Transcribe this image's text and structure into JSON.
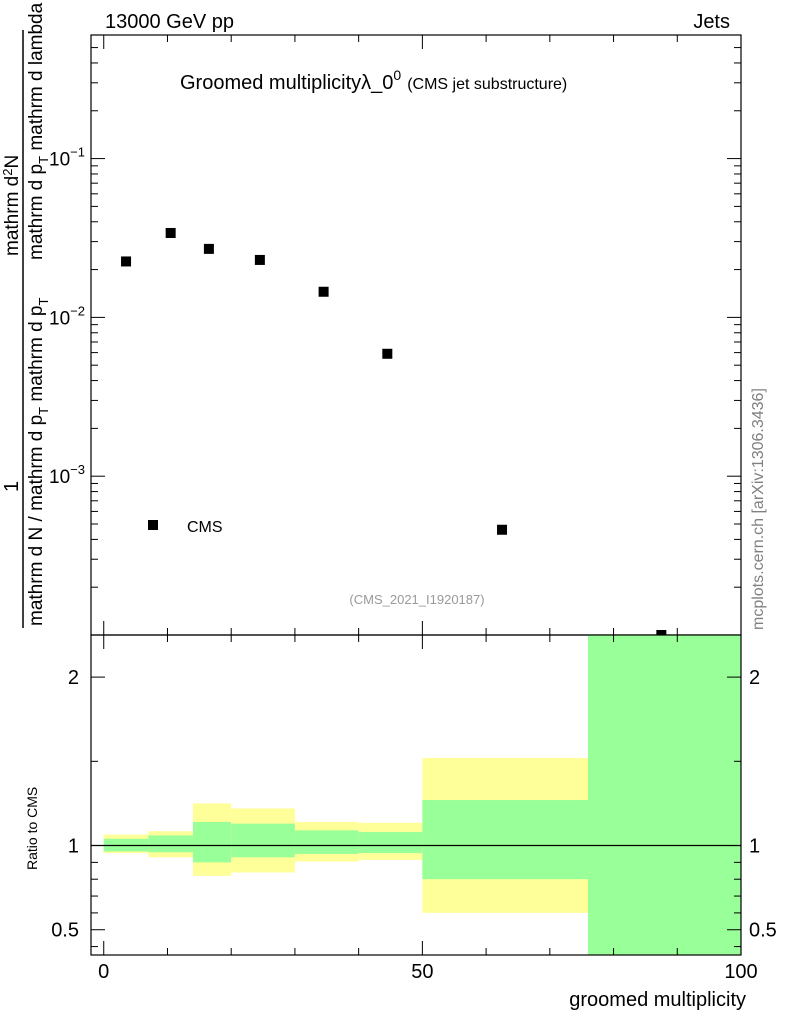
{
  "header": {
    "left": "13000 GeV pp",
    "right": "Jets"
  },
  "title": {
    "main": "Groomed multiplicityλ_0",
    "superscript": "0",
    "secondary": "(CMS jet substructure)"
  },
  "watermark": "mcplots.cern.ch [arXiv:1306.3436]",
  "analysis_id": "(CMS_2021_I1920187)",
  "ylabel_main": {
    "prefix": "1",
    "num": "mathrm d",
    "num_sup": "2",
    "num_end": "N",
    "den_top": "mathrm d p",
    "den_sub": "T",
    "den_end": " mathrm d lambda",
    "outer_den": "mathrm d N / mathrm d p",
    "outer_sub": "T",
    "outer_end": " mathrm d p",
    "outer_sub2": "T"
  },
  "ylabel_ratio": "Ratio to CMS",
  "xlabel": "groomed multiplicity",
  "legend": {
    "label": "CMS"
  },
  "chart_data": [
    {
      "type": "scatter",
      "yscale": "log",
      "ylim": [
        0.0001,
        0.6
      ],
      "xlim": [
        -2,
        100
      ],
      "y_ticks": [
        {
          "value": 0.1,
          "label": "10",
          "exp": "−1"
        },
        {
          "value": 0.01,
          "label": "10",
          "exp": "−2"
        },
        {
          "value": 0.001,
          "label": "10",
          "exp": "−3"
        }
      ],
      "series": [
        {
          "name": "CMS",
          "x": [
            3.5,
            10.5,
            16.5,
            24.5,
            34.5,
            44.5,
            62.5,
            87.5
          ],
          "y": [
            0.0225,
            0.034,
            0.027,
            0.023,
            0.0145,
            0.0059,
            0.00046,
            0.0001
          ]
        }
      ]
    },
    {
      "type": "area",
      "ylim": [
        0.35,
        2.25
      ],
      "xlim": [
        -2,
        100
      ],
      "y_ticks": [
        2,
        1,
        0.5
      ],
      "x_ticks": [
        0,
        50,
        100
      ],
      "reference_line": 1,
      "bands": {
        "edges": [
          0,
          7,
          14,
          20,
          30,
          40,
          50,
          76,
          100
        ],
        "yellow_lo": [
          0.955,
          0.93,
          0.82,
          0.84,
          0.905,
          0.915,
          0.6,
          0.35
        ],
        "yellow_hi": [
          1.065,
          1.085,
          1.25,
          1.22,
          1.14,
          1.135,
          1.52,
          2.25
        ],
        "green_lo": [
          0.965,
          0.96,
          0.9,
          0.93,
          0.95,
          0.955,
          0.8,
          0.35
        ],
        "green_hi": [
          1.04,
          1.06,
          1.14,
          1.13,
          1.09,
          1.08,
          1.27,
          2.25
        ]
      },
      "colors": {
        "yellow": "#ffff99",
        "green": "#99ff99"
      }
    }
  ]
}
